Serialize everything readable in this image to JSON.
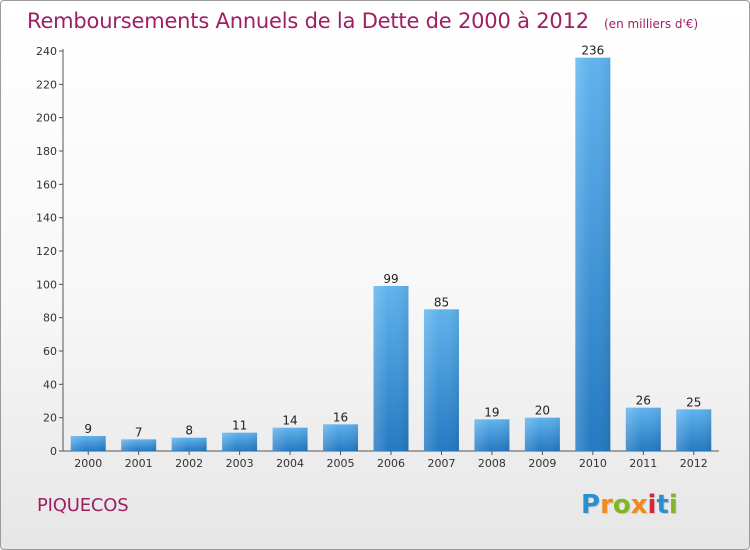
{
  "header": {
    "title": "Remboursements Annuels de la Dette de 2000 à 2012",
    "units": "(en milliers d'€)"
  },
  "commune": "PIQUECOS",
  "logo": {
    "letters": [
      "P",
      "r",
      "o",
      "x",
      "i",
      "t",
      "i"
    ],
    "colors": [
      "#2a8fd0",
      "#f08a1c",
      "#80b624",
      "#f08a1c",
      "#d8243b",
      "#2a8fd0",
      "#80b624"
    ]
  },
  "chart_data": {
    "type": "bar",
    "categories": [
      "2000",
      "2001",
      "2002",
      "2003",
      "2004",
      "2005",
      "2006",
      "2007",
      "2008",
      "2009",
      "2010",
      "2011",
      "2012"
    ],
    "values": [
      9,
      7,
      8,
      11,
      14,
      16,
      99,
      85,
      19,
      20,
      236,
      26,
      25
    ],
    "title": "Remboursements Annuels de la Dette de 2000 à 2012",
    "subtitle": "(en milliers d'€)",
    "xlabel": "",
    "ylabel": "",
    "ylim": [
      0,
      240
    ],
    "yticks": [
      0,
      20,
      40,
      60,
      80,
      100,
      120,
      140,
      160,
      180,
      200,
      220,
      240
    ],
    "grid": false,
    "data_labels": true,
    "bar_color": "#3d9ee2"
  }
}
